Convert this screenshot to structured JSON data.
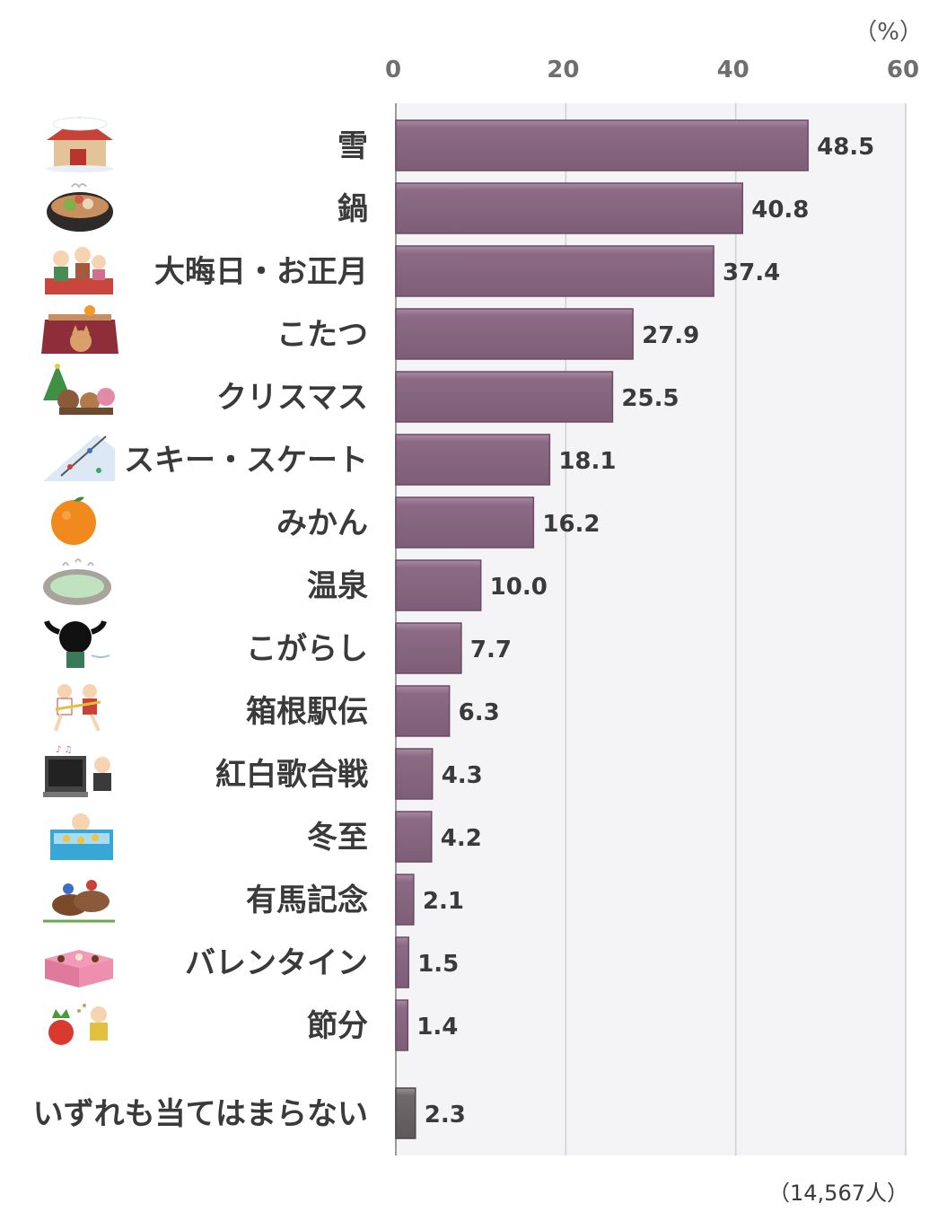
{
  "chart_data": {
    "type": "bar",
    "orientation": "horizontal",
    "unit": "（%）",
    "note": "（14,567人）",
    "xlim": [
      0,
      60
    ],
    "ticks": [
      "0",
      "20",
      "40",
      "60"
    ],
    "tick_values": [
      0,
      20,
      40,
      60
    ],
    "grid": true,
    "colors": {
      "bar": "#8c6a85",
      "bar_other": "#6e6a6c",
      "plot_bg": "#f4f3f6",
      "grid": "#cfcfd4"
    },
    "categories": [
      {
        "label": "雪",
        "value": 48.5,
        "value_label": "48.5",
        "icon": "snow-house-icon"
      },
      {
        "label": "鍋",
        "value": 40.8,
        "value_label": "40.8",
        "icon": "hot-pot-icon"
      },
      {
        "label": "大晦日・お正月",
        "value": 37.4,
        "value_label": "37.4",
        "icon": "new-year-family-icon"
      },
      {
        "label": "こたつ",
        "value": 27.9,
        "value_label": "27.9",
        "icon": "kotatsu-cat-icon"
      },
      {
        "label": "クリスマス",
        "value": 25.5,
        "value_label": "25.5",
        "icon": "christmas-animals-icon"
      },
      {
        "label": "スキー・スケート",
        "value": 18.1,
        "value_label": "18.1",
        "icon": "ski-slope-icon"
      },
      {
        "label": "みかん",
        "value": 16.2,
        "value_label": "16.2",
        "icon": "mandarin-orange-icon"
      },
      {
        "label": "温泉",
        "value": 10.0,
        "value_label": "10.0",
        "icon": "hot-spring-icon"
      },
      {
        "label": "こがらし",
        "value": 7.7,
        "value_label": "7.7",
        "icon": "cold-wind-icon"
      },
      {
        "label": "箱根駅伝",
        "value": 6.3,
        "value_label": "6.3",
        "icon": "relay-runners-icon"
      },
      {
        "label": "紅白歌合戦",
        "value": 4.3,
        "value_label": "4.3",
        "icon": "tv-singing-icon"
      },
      {
        "label": "冬至",
        "value": 4.2,
        "value_label": "4.2",
        "icon": "yuzu-bath-icon"
      },
      {
        "label": "有馬記念",
        "value": 2.1,
        "value_label": "2.1",
        "icon": "horse-race-icon"
      },
      {
        "label": "バレンタイン",
        "value": 1.5,
        "value_label": "1.5",
        "icon": "chocolate-box-icon"
      },
      {
        "label": "節分",
        "value": 1.4,
        "value_label": "1.4",
        "icon": "setsubun-oni-icon"
      },
      {
        "label": "いずれも当てはまらない",
        "value": 2.3,
        "value_label": "2.3",
        "icon": "",
        "other": true
      }
    ]
  }
}
